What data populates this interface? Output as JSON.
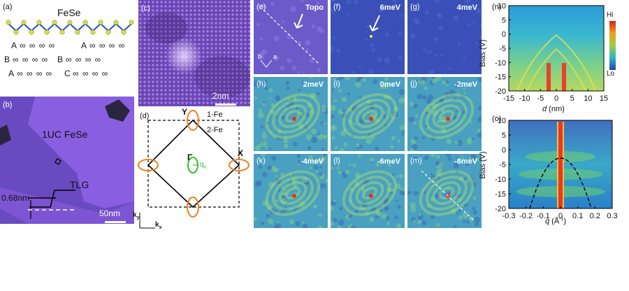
{
  "panels": {
    "a": {
      "label": "(a)",
      "title": "FeSe",
      "rows": [
        {
          "l": "A",
          "r": "A"
        },
        {
          "l": "B",
          "r": "B"
        },
        {
          "l": "A",
          "r": "C"
        }
      ],
      "chain": "∞ ∞ ∞ ∞"
    },
    "b": {
      "label": "(b)",
      "film": "1UC FeSe",
      "substrate": "TLG",
      "height": "0.68nm",
      "scale": "50nm"
    },
    "c": {
      "label": "(c)",
      "scale": "2nm"
    },
    "d": {
      "label": "(d)",
      "Y": "Y",
      "X": "X",
      "Gamma": "Γ",
      "qn": "q",
      "qn_sub": "n",
      "fe1": "1-Fe",
      "fe2": "2-Fe",
      "ky": "k",
      "ky_sub": "y",
      "kx": "k",
      "kx_sub": "x"
    },
    "maps": [
      {
        "label": "(e)",
        "energy": "Topo"
      },
      {
        "label": "(f)",
        "energy": "6meV"
      },
      {
        "label": "(g)",
        "energy": "4meV"
      },
      {
        "label": "(h)",
        "energy": "2meV"
      },
      {
        "label": "(i)",
        "energy": "0meV"
      },
      {
        "label": "(j)",
        "energy": "-2meV"
      },
      {
        "label": "(k)",
        "energy": "-4meV"
      },
      {
        "label": "(l)",
        "energy": "-6meV"
      },
      {
        "label": "(m)",
        "energy": "-8meV"
      }
    ],
    "e_axes": {
      "a": "a",
      "b": "b"
    },
    "n": {
      "label": "(n)",
      "ylabel": "Bias (V)",
      "xlabel": "d",
      "xunit": " (nm)",
      "yticks": [
        "10",
        "5",
        "0",
        "-5",
        "-10",
        "-15",
        "-20"
      ],
      "xticks": [
        "-15",
        "-10",
        "-5",
        "0",
        "5",
        "10",
        "15"
      ],
      "cb_hi": "Hi",
      "cb_lo": "Lo"
    },
    "o": {
      "label": "(o)",
      "ylabel": "Bias (V)",
      "xlabel": "q",
      "xunit": " (Å",
      "xunit_sup": "-1",
      "xunit_end": ")",
      "yticks": [
        "10",
        "5",
        "0",
        "-5",
        "-10",
        "-15",
        "-20"
      ],
      "xticks": [
        "-0.3",
        "-0.2",
        "-0.1",
        "0",
        "0.1",
        "0.2",
        "0.3"
      ]
    }
  },
  "colors": {
    "stm_purple": "#7a4fc9",
    "map_blue": "#3550b4",
    "arrow": "#ffffff",
    "pocket": "#f08020",
    "gamma": "#30c030"
  }
}
